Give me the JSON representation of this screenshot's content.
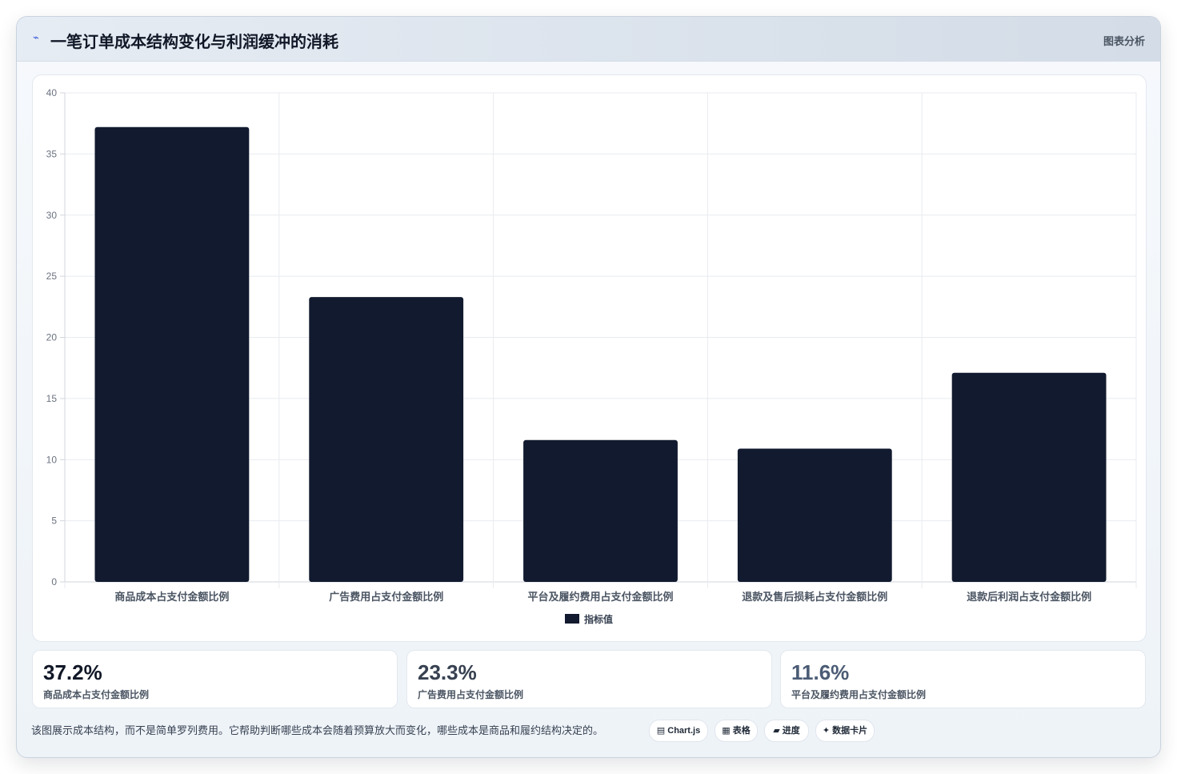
{
  "header": {
    "icon": "bolt-icon",
    "title": "一笔订单成本结构变化与利润缓冲的消耗",
    "link_label": "图表分析"
  },
  "chart_data": {
    "type": "bar",
    "categories": [
      "商品成本占支付金额比例",
      "广告费用占支付金额比例",
      "平台及履约费用占支付金额比例",
      "退款及售后损耗占支付金额比例",
      "退款后利润占支付金额比例"
    ],
    "series": [
      {
        "name": "指标值",
        "values": [
          37.2,
          23.3,
          11.6,
          10.9,
          17.1
        ],
        "color": "#111a2e"
      }
    ],
    "ylim": [
      0,
      40
    ],
    "yticks": [
      0,
      5,
      10,
      15,
      20,
      25,
      30,
      35,
      40
    ],
    "grid": true,
    "legend": "bottom"
  },
  "stats": [
    {
      "value": "37.2%",
      "label": "商品成本占支付金额比例",
      "color": "#111827"
    },
    {
      "value": "23.3%",
      "label": "广告费用占支付金额比例",
      "color": "#374151"
    },
    {
      "value": "11.6%",
      "label": "平台及履约费用占支付金额比例",
      "color": "#4b5c75"
    }
  ],
  "footer": {
    "description": "该图展示成本结构，而不是简单罗列费用。它帮助判断哪些成本会随着预算放大而变化，哪些成本是商品和履约结构决定的。",
    "tags": [
      {
        "icon": "▤",
        "label": "Chart.js"
      },
      {
        "icon": "▦",
        "label": "表格"
      },
      {
        "icon": "▰",
        "label": "进度"
      },
      {
        "icon": "✦",
        "label": "数据卡片"
      }
    ]
  }
}
